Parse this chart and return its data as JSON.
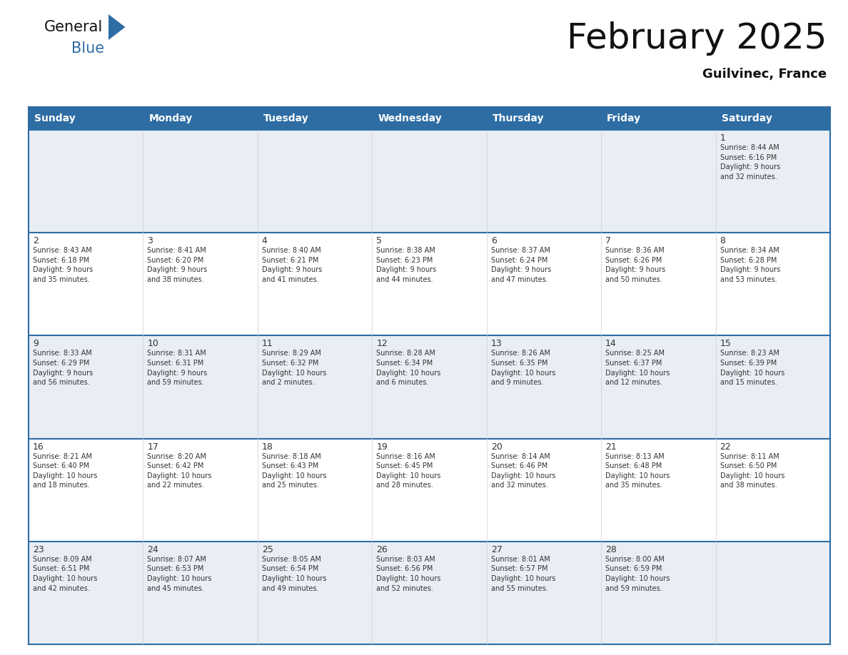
{
  "title": "February 2025",
  "subtitle": "Guilvinec, France",
  "header_bg": "#2e6da4",
  "header_text_color": "#ffffff",
  "cell_bg_light": "#e8eef4",
  "cell_bg_white": "#ffffff",
  "row_line_color": "#2e6da4",
  "text_color": "#333333",
  "days_of_week": [
    "Sunday",
    "Monday",
    "Tuesday",
    "Wednesday",
    "Thursday",
    "Friday",
    "Saturday"
  ],
  "calendar": [
    [
      {
        "day": null,
        "info": null
      },
      {
        "day": null,
        "info": null
      },
      {
        "day": null,
        "info": null
      },
      {
        "day": null,
        "info": null
      },
      {
        "day": null,
        "info": null
      },
      {
        "day": null,
        "info": null
      },
      {
        "day": 1,
        "info": "Sunrise: 8:44 AM\nSunset: 6:16 PM\nDaylight: 9 hours\nand 32 minutes."
      }
    ],
    [
      {
        "day": 2,
        "info": "Sunrise: 8:43 AM\nSunset: 6:18 PM\nDaylight: 9 hours\nand 35 minutes."
      },
      {
        "day": 3,
        "info": "Sunrise: 8:41 AM\nSunset: 6:20 PM\nDaylight: 9 hours\nand 38 minutes."
      },
      {
        "day": 4,
        "info": "Sunrise: 8:40 AM\nSunset: 6:21 PM\nDaylight: 9 hours\nand 41 minutes."
      },
      {
        "day": 5,
        "info": "Sunrise: 8:38 AM\nSunset: 6:23 PM\nDaylight: 9 hours\nand 44 minutes."
      },
      {
        "day": 6,
        "info": "Sunrise: 8:37 AM\nSunset: 6:24 PM\nDaylight: 9 hours\nand 47 minutes."
      },
      {
        "day": 7,
        "info": "Sunrise: 8:36 AM\nSunset: 6:26 PM\nDaylight: 9 hours\nand 50 minutes."
      },
      {
        "day": 8,
        "info": "Sunrise: 8:34 AM\nSunset: 6:28 PM\nDaylight: 9 hours\nand 53 minutes."
      }
    ],
    [
      {
        "day": 9,
        "info": "Sunrise: 8:33 AM\nSunset: 6:29 PM\nDaylight: 9 hours\nand 56 minutes."
      },
      {
        "day": 10,
        "info": "Sunrise: 8:31 AM\nSunset: 6:31 PM\nDaylight: 9 hours\nand 59 minutes."
      },
      {
        "day": 11,
        "info": "Sunrise: 8:29 AM\nSunset: 6:32 PM\nDaylight: 10 hours\nand 2 minutes."
      },
      {
        "day": 12,
        "info": "Sunrise: 8:28 AM\nSunset: 6:34 PM\nDaylight: 10 hours\nand 6 minutes."
      },
      {
        "day": 13,
        "info": "Sunrise: 8:26 AM\nSunset: 6:35 PM\nDaylight: 10 hours\nand 9 minutes."
      },
      {
        "day": 14,
        "info": "Sunrise: 8:25 AM\nSunset: 6:37 PM\nDaylight: 10 hours\nand 12 minutes."
      },
      {
        "day": 15,
        "info": "Sunrise: 8:23 AM\nSunset: 6:39 PM\nDaylight: 10 hours\nand 15 minutes."
      }
    ],
    [
      {
        "day": 16,
        "info": "Sunrise: 8:21 AM\nSunset: 6:40 PM\nDaylight: 10 hours\nand 18 minutes."
      },
      {
        "day": 17,
        "info": "Sunrise: 8:20 AM\nSunset: 6:42 PM\nDaylight: 10 hours\nand 22 minutes."
      },
      {
        "day": 18,
        "info": "Sunrise: 8:18 AM\nSunset: 6:43 PM\nDaylight: 10 hours\nand 25 minutes."
      },
      {
        "day": 19,
        "info": "Sunrise: 8:16 AM\nSunset: 6:45 PM\nDaylight: 10 hours\nand 28 minutes."
      },
      {
        "day": 20,
        "info": "Sunrise: 8:14 AM\nSunset: 6:46 PM\nDaylight: 10 hours\nand 32 minutes."
      },
      {
        "day": 21,
        "info": "Sunrise: 8:13 AM\nSunset: 6:48 PM\nDaylight: 10 hours\nand 35 minutes."
      },
      {
        "day": 22,
        "info": "Sunrise: 8:11 AM\nSunset: 6:50 PM\nDaylight: 10 hours\nand 38 minutes."
      }
    ],
    [
      {
        "day": 23,
        "info": "Sunrise: 8:09 AM\nSunset: 6:51 PM\nDaylight: 10 hours\nand 42 minutes."
      },
      {
        "day": 24,
        "info": "Sunrise: 8:07 AM\nSunset: 6:53 PM\nDaylight: 10 hours\nand 45 minutes."
      },
      {
        "day": 25,
        "info": "Sunrise: 8:05 AM\nSunset: 6:54 PM\nDaylight: 10 hours\nand 49 minutes."
      },
      {
        "day": 26,
        "info": "Sunrise: 8:03 AM\nSunset: 6:56 PM\nDaylight: 10 hours\nand 52 minutes."
      },
      {
        "day": 27,
        "info": "Sunrise: 8:01 AM\nSunset: 6:57 PM\nDaylight: 10 hours\nand 55 minutes."
      },
      {
        "day": 28,
        "info": "Sunrise: 8:00 AM\nSunset: 6:59 PM\nDaylight: 10 hours\nand 59 minutes."
      },
      {
        "day": null,
        "info": null
      }
    ]
  ],
  "logo_text_general": "General",
  "logo_text_blue": "Blue",
  "logo_color_general": "#111111",
  "logo_color_blue": "#2e6da4",
  "logo_triangle_color": "#2e6da4",
  "title_fontsize": 36,
  "subtitle_fontsize": 13,
  "header_fontsize": 10,
  "day_number_fontsize": 9,
  "info_fontsize": 7
}
